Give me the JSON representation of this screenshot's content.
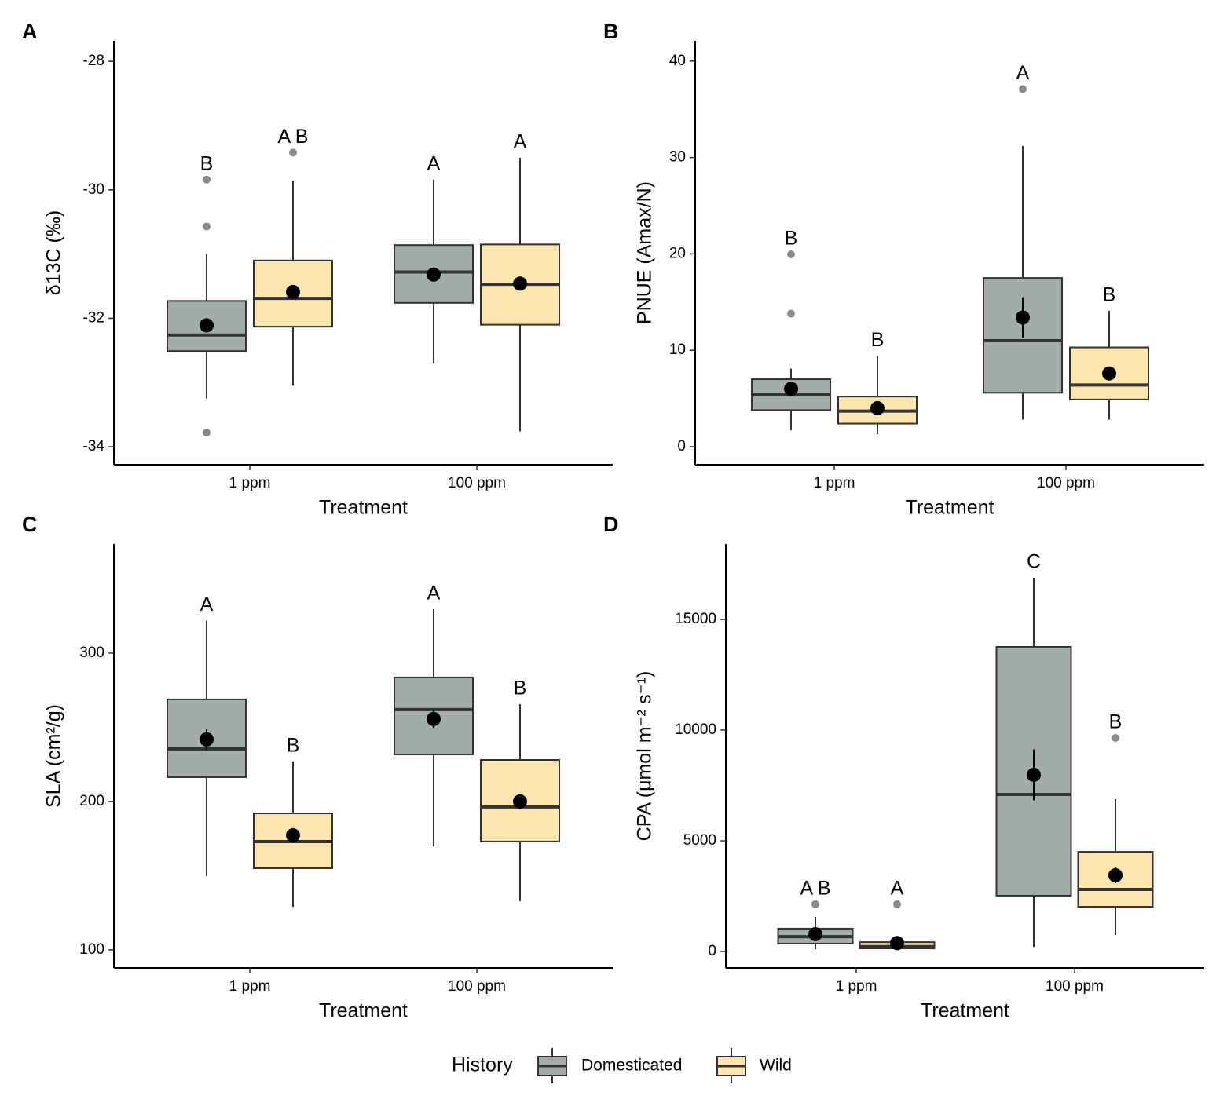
{
  "groups": [
    {
      "name": "Domesticated",
      "color": "#a2ada7"
    },
    {
      "name": "Wild",
      "color": "#fde5b0"
    }
  ],
  "legend": {
    "title": "History"
  },
  "chart_data": [
    {
      "type": "box",
      "panel": "A",
      "ylabel": "δ13C (‰)",
      "xlabel": "Treatment",
      "categories": [
        "1 ppm",
        "100 ppm"
      ],
      "ylim": [
        -34.28,
        -27.68
      ],
      "yticks": [
        -34,
        -32,
        -30,
        -28
      ],
      "series": [
        {
          "boxes": [
            {
              "min": -33.25,
              "q1": -32.51,
              "median": -32.26,
              "q3": -31.73,
              "max": -31.0,
              "mean": -32.11,
              "se": 0.1,
              "outliers": [
                -29.84,
                -30.57,
                -33.78
              ],
              "letter": "B"
            },
            {
              "min": -32.7,
              "q1": -31.76,
              "median": -31.28,
              "q3": -30.86,
              "max": -29.84,
              "mean": -31.32,
              "se": 0.08,
              "outliers": [],
              "letter": "A"
            }
          ]
        },
        {
          "boxes": [
            {
              "min": -33.05,
              "q1": -32.13,
              "median": -31.69,
              "q3": -31.1,
              "max": -29.86,
              "mean": -31.59,
              "se": 0.08,
              "outliers": [
                -29.42
              ],
              "letter": "A B"
            },
            {
              "min": -33.76,
              "q1": -32.1,
              "median": -31.47,
              "q3": -30.85,
              "max": -29.5,
              "mean": -31.46,
              "se": 0.08,
              "outliers": [],
              "letter": "A"
            }
          ]
        }
      ]
    },
    {
      "type": "box",
      "panel": "B",
      "ylabel": "PNUE (Amax/N)",
      "xlabel": "Treatment",
      "categories": [
        "1 ppm",
        "100 ppm"
      ],
      "ylim": [
        -1.87,
        42.1
      ],
      "yticks": [
        0,
        10,
        20,
        30,
        40
      ],
      "series": [
        {
          "boxes": [
            {
              "min": 1.7,
              "q1": 3.8,
              "median": 5.4,
              "q3": 7.0,
              "max": 8.1,
              "mean": 6.0,
              "se": 0.6,
              "outliers": [
                13.8,
                19.95
              ],
              "letter": "B"
            },
            {
              "min": 2.8,
              "q1": 5.6,
              "median": 11.0,
              "q3": 17.5,
              "max": 31.2,
              "mean": 13.4,
              "se": 2.1,
              "outliers": [
                37.1
              ],
              "letter": "A"
            }
          ]
        },
        {
          "boxes": [
            {
              "min": 1.3,
              "q1": 2.4,
              "median": 3.7,
              "q3": 5.2,
              "max": 9.4,
              "mean": 4.0,
              "se": 0.4,
              "outliers": [],
              "letter": "B"
            },
            {
              "min": 2.8,
              "q1": 4.9,
              "median": 6.4,
              "q3": 10.3,
              "max": 14.1,
              "mean": 7.6,
              "se": 0.5,
              "outliers": [],
              "letter": "B"
            }
          ]
        }
      ]
    },
    {
      "type": "box",
      "panel": "C",
      "ylabel": "SLA (cm²/g)",
      "xlabel": "Treatment",
      "categories": [
        "1 ppm",
        "100 ppm"
      ],
      "ylim": [
        87.8,
        373.5
      ],
      "yticks": [
        100,
        200,
        300
      ],
      "series": [
        {
          "boxes": [
            {
              "min": 149.7,
              "q1": 216.4,
              "median": 235.4,
              "q3": 268.8,
              "max": 322,
              "mean": 241.8,
              "se": 7,
              "outliers": [],
              "letter": "A"
            },
            {
              "min": 169.8,
              "q1": 231.7,
              "median": 261.9,
              "q3": 283.6,
              "max": 329.6,
              "mean": 255.6,
              "se": 6,
              "outliers": [],
              "letter": "A"
            }
          ]
        },
        {
          "boxes": [
            {
              "min": 129,
              "q1": 155,
              "median": 173,
              "q3": 192,
              "max": 227,
              "mean": 177.2,
              "se": 4,
              "outliers": [],
              "letter": "B"
            },
            {
              "min": 132.8,
              "q1": 173,
              "median": 196.3,
              "q3": 228,
              "max": 265.6,
              "mean": 200,
              "se": 5,
              "outliers": [],
              "letter": "B"
            }
          ]
        }
      ]
    },
    {
      "type": "box",
      "panel": "D",
      "ylabel": "CPA (μmol m⁻² s⁻¹)",
      "xlabel": "Treatment",
      "categories": [
        "1 ppm",
        "100 ppm"
      ],
      "ylim": [
        -745,
        18404
      ],
      "yticks": [
        0,
        5000,
        10000,
        15000
      ],
      "series": [
        {
          "boxes": [
            {
              "min": 105,
              "q1": 355,
              "median": 670,
              "q3": 1030,
              "max": 1560,
              "mean": 780,
              "se": 150,
              "outliers": [
                2130
              ],
              "letter": "A B"
            },
            {
              "min": 210,
              "q1": 2520,
              "median": 7090,
              "q3": 13760,
              "max": 16880,
              "mean": 7980,
              "se": 1150,
              "outliers": [],
              "letter": "C"
            }
          ]
        },
        {
          "boxes": [
            {
              "min": 60,
              "q1": 140,
              "median": 220,
              "q3": 420,
              "max": 460,
              "mean": 380,
              "se": 60,
              "outliers": [
                2130
              ],
              "letter": "A"
            },
            {
              "min": 745,
              "q1": 2020,
              "median": 2800,
              "q3": 4500,
              "max": 6880,
              "mean": 3440,
              "se": 350,
              "outliers": [
                9645
              ],
              "letter": "B"
            }
          ]
        }
      ]
    }
  ]
}
